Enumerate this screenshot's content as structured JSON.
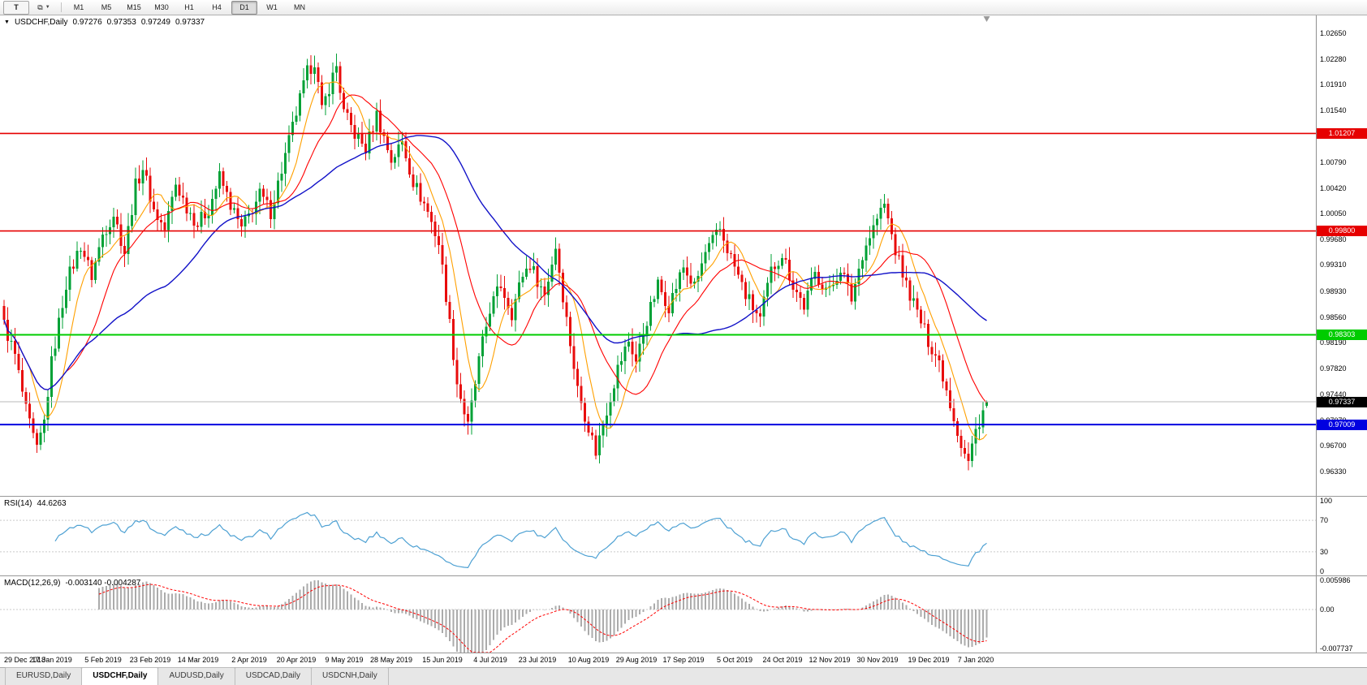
{
  "toolbar": {
    "template_button": "T",
    "timeframes": [
      "M1",
      "M5",
      "M15",
      "M30",
      "H1",
      "H4",
      "D1",
      "W1",
      "MN"
    ],
    "active_timeframe": "D1"
  },
  "chart": {
    "legend": {
      "symbol": "USDCHF,Daily",
      "open": "0.97276",
      "high": "0.97353",
      "low": "0.97249",
      "close": "0.97337"
    },
    "price_axis_ticks": [
      "1.02650",
      "1.02280",
      "1.01910",
      "1.01540",
      "1.01170",
      "1.00790",
      "1.00420",
      "1.00050",
      "0.99680",
      "0.99310",
      "0.98930",
      "0.98560",
      "0.98190",
      "0.97820",
      "0.97440",
      "0.97070",
      "0.96700",
      "0.96330"
    ],
    "levels": [
      {
        "value": "1.01207",
        "price": 1.01207,
        "color": "#e60000",
        "text_color": "#ffffff",
        "width": 1.6,
        "type": "resistance-line"
      },
      {
        "value": "0.99800",
        "price": 0.998,
        "color": "#e60000",
        "text_color": "#ffffff",
        "width": 1.6,
        "type": "resistance-line"
      },
      {
        "value": "0.98303",
        "price": 0.98303,
        "color": "#00cc00",
        "text_color": "#ffffff",
        "width": 2,
        "type": "support-line"
      },
      {
        "value": "0.97009",
        "price": 0.97009,
        "color": "#0000e0",
        "text_color": "#ffffff",
        "width": 2,
        "type": "support-line"
      }
    ],
    "current_price": {
      "value": "0.97337",
      "price": 0.97337,
      "badge_color": "#000000"
    },
    "date_axis": [
      "29 Dec 2018",
      "17 Jan 2019",
      "5 Feb 2019",
      "23 Feb 2019",
      "14 Mar 2019",
      "2 Apr 2019",
      "20 Apr 2019",
      "9 May 2019",
      "28 May 2019",
      "15 Jun 2019",
      "4 Jul 2019",
      "23 Jul 2019",
      "10 Aug 2019",
      "29 Aug 2019",
      "17 Sep 2019",
      "5 Oct 2019",
      "24 Oct 2019",
      "12 Nov 2019",
      "30 Nov 2019",
      "19 Dec 2019",
      "7 Jan 2020"
    ],
    "colors": {
      "candle_up": "#00a136",
      "candle_down": "#e80c0c",
      "ma_fast": "#ffa000",
      "ma_mid": "#ff0000",
      "ma_slow": "#1212c8",
      "current_price_line": "#b9b9b9"
    }
  },
  "rsi": {
    "label": "RSI(14)",
    "value": "44.6263",
    "line_color": "#4ea1d3",
    "axis_ticks": [
      "100",
      "70",
      "30",
      "0"
    ],
    "level_lines": [
      70,
      30
    ]
  },
  "macd": {
    "label": "MACD(12,26,9)",
    "values": "-0.003140 -0.004287",
    "axis_ticks": [
      "0.005986",
      "0.00",
      "-0.007737"
    ],
    "range": [
      -0.007737,
      0.005986
    ],
    "histogram_color": "#ababab",
    "signal_color": "#ff0000"
  },
  "tabs": [
    {
      "label": "EURUSD,Daily",
      "active": false
    },
    {
      "label": "USDCHF,Daily",
      "active": true
    },
    {
      "label": "AUDUSD,Daily",
      "active": false
    },
    {
      "label": "USDCAD,Daily",
      "active": false
    },
    {
      "label": "USDCNH,Daily",
      "active": false
    }
  ],
  "chart_data": {
    "type": "candlestick",
    "symbol": "USDCHF",
    "timeframe": "Daily",
    "title": "USDCHF,Daily",
    "bars": 270,
    "y_range": [
      0.9598,
      1.0292
    ],
    "x_labels": [
      "29 Dec 2018",
      "17 Jan 2019",
      "5 Feb 2019",
      "23 Feb 2019",
      "14 Mar 2019",
      "2 Apr 2019",
      "20 Apr 2019",
      "9 May 2019",
      "28 May 2019",
      "15 Jun 2019",
      "4 Jul 2019",
      "23 Jul 2019",
      "10 Aug 2019",
      "29 Aug 2019",
      "17 Sep 2019",
      "5 Oct 2019",
      "24 Oct 2019",
      "12 Nov 2019",
      "30 Nov 2019",
      "19 Dec 2019",
      "7 Jan 2020"
    ],
    "label_bar_step": 13.3,
    "ohlc_current": {
      "open": 0.97276,
      "high": 0.97353,
      "low": 0.97249,
      "close": 0.97337
    },
    "close_waypoints": [
      [
        0,
        0.9845
      ],
      [
        3,
        0.98
      ],
      [
        6,
        0.972
      ],
      [
        9,
        0.9662
      ],
      [
        11,
        0.9705
      ],
      [
        13,
        0.979
      ],
      [
        17,
        0.9905
      ],
      [
        21,
        0.996
      ],
      [
        24,
        0.9915
      ],
      [
        27,
        0.9975
      ],
      [
        30,
        1.0005
      ],
      [
        33,
        0.995
      ],
      [
        36,
        1.0045
      ],
      [
        38,
        1.0072
      ],
      [
        41,
        1.001
      ],
      [
        44,
        0.9982
      ],
      [
        47,
        1.0048
      ],
      [
        50,
        1.0015
      ],
      [
        53,
        0.999
      ],
      [
        56,
        1.0012
      ],
      [
        59,
        1.0058
      ],
      [
        62,
        1.0018
      ],
      [
        65,
        0.9982
      ],
      [
        67,
        1.0002
      ],
      [
        70,
        1.0032
      ],
      [
        73,
        1.0008
      ],
      [
        76,
        1.0068
      ],
      [
        80,
        1.015
      ],
      [
        83,
        1.0208
      ],
      [
        85,
        1.0226
      ],
      [
        87,
        1.0152
      ],
      [
        89,
        1.0188
      ],
      [
        91,
        1.0218
      ],
      [
        93,
        1.015
      ],
      [
        96,
        1.012
      ],
      [
        99,
        1.0098
      ],
      [
        102,
        1.0148
      ],
      [
        106,
        1.0082
      ],
      [
        109,
        1.0108
      ],
      [
        112,
        1.0052
      ],
      [
        116,
        1.0008
      ],
      [
        119,
        0.9962
      ],
      [
        121,
        0.9888
      ],
      [
        124,
        0.9762
      ],
      [
        127,
        0.9697
      ],
      [
        130,
        0.9792
      ],
      [
        133,
        0.9868
      ],
      [
        136,
        0.9902
      ],
      [
        139,
        0.9862
      ],
      [
        142,
        0.9918
      ],
      [
        144,
        0.9932
      ],
      [
        148,
        0.9888
      ],
      [
        151,
        0.9958
      ],
      [
        154,
        0.9852
      ],
      [
        157,
        0.9752
      ],
      [
        160,
        0.9698
      ],
      [
        162,
        0.9662
      ],
      [
        165,
        0.9722
      ],
      [
        168,
        0.9782
      ],
      [
        171,
        0.9822
      ],
      [
        173,
        0.9792
      ],
      [
        176,
        0.9852
      ],
      [
        179,
        0.9902
      ],
      [
        182,
        0.9872
      ],
      [
        186,
        0.9928
      ],
      [
        189,
        0.9898
      ],
      [
        192,
        0.9948
      ],
      [
        196,
        0.9982
      ],
      [
        200,
        0.9928
      ],
      [
        203,
        0.9888
      ],
      [
        207,
        0.9852
      ],
      [
        210,
        0.9922
      ],
      [
        213,
        0.9948
      ],
      [
        216,
        0.9902
      ],
      [
        219,
        0.9872
      ],
      [
        222,
        0.9918
      ],
      [
        226,
        0.9892
      ],
      [
        229,
        0.9928
      ],
      [
        232,
        0.9882
      ],
      [
        235,
        0.9948
      ],
      [
        239,
        0.9998
      ],
      [
        241,
        1.0018
      ],
      [
        244,
        0.9952
      ],
      [
        247,
        0.9902
      ],
      [
        250,
        0.9862
      ],
      [
        253,
        0.9822
      ],
      [
        256,
        0.9792
      ],
      [
        259,
        0.9732
      ],
      [
        262,
        0.9672
      ],
      [
        264,
        0.9646
      ],
      [
        266,
        0.9692
      ],
      [
        268,
        0.9722
      ],
      [
        269,
        0.97337
      ]
    ],
    "indicators": {
      "moving_averages": [
        {
          "name": "fast",
          "color": "#ffa000"
        },
        {
          "name": "mid",
          "color": "#ff0000"
        },
        {
          "name": "slow",
          "color": "#1212c8"
        }
      ],
      "rsi": {
        "period": 14,
        "current": 44.6263,
        "scale": [
          0,
          100
        ],
        "levels": [
          30,
          70
        ]
      },
      "macd": {
        "fast": 12,
        "slow": 26,
        "signal": 9,
        "current": -0.00314,
        "signal_current": -0.004287,
        "scale": [
          -0.007737,
          0.005986
        ]
      },
      "horizontal_lines": [
        1.01207,
        0.998,
        0.98303,
        0.97009
      ]
    }
  }
}
